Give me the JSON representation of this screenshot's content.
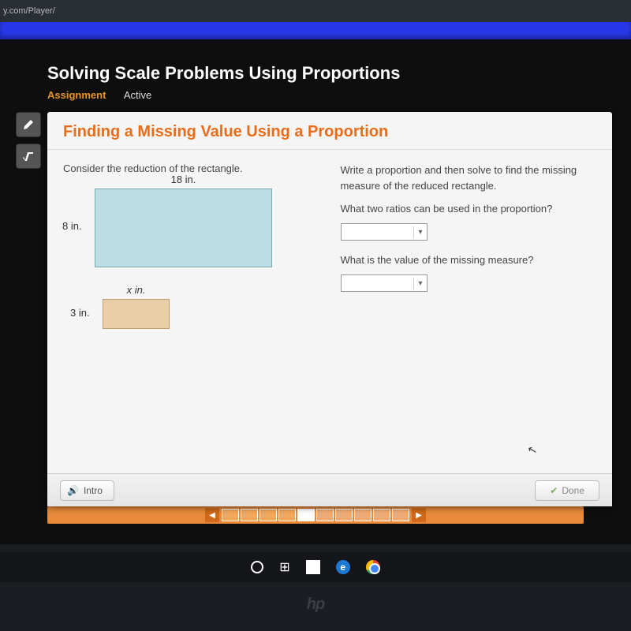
{
  "url": "y.com/Player/",
  "lesson_title": "Solving Scale Problems Using Proportions",
  "assignment_label": "Assignment",
  "status": "Active",
  "card_title": "Finding a Missing Value Using a Proportion",
  "left_prompt": "Consider the reduction of the rectangle.",
  "big_rect": {
    "width_label": "18 in.",
    "height_label": "8 in.",
    "fill": "#bcdde6"
  },
  "small_rect": {
    "width_label": "x in.",
    "height_label": "3 in.",
    "fill": "#e8cfa8"
  },
  "right_intro": "Write a proportion and then solve to find the missing measure of the reduced rectangle.",
  "q1": "What two ratios can be used in the proportion?",
  "q2": "What is the value of the missing measure?",
  "intro_btn": "Intro",
  "done_btn": "Done",
  "progress": {
    "total": 10,
    "done": 4,
    "current": 5
  },
  "colors": {
    "accent_orange": "#e86c1a",
    "assignment_orange": "#e89522",
    "progress_bar": "#e88a3a"
  }
}
